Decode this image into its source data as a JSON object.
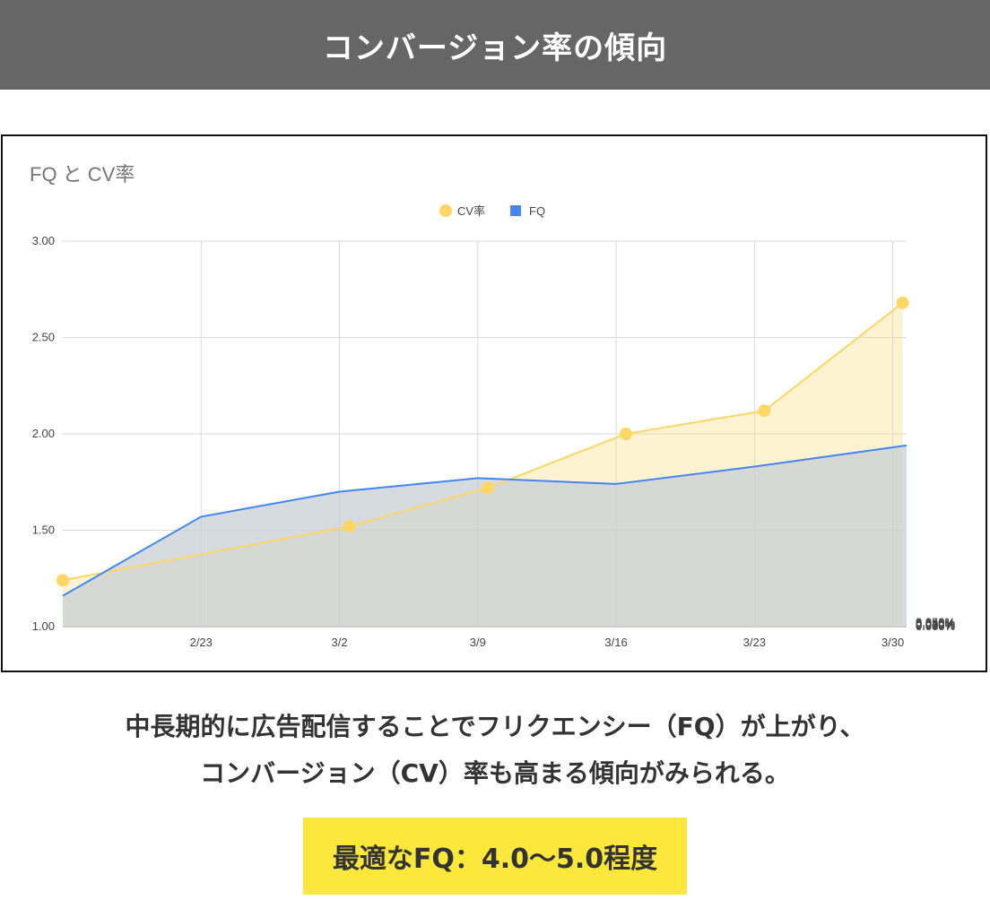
{
  "page": {
    "title": "コンバージョン率の傾向",
    "caption_line1": "中長期的に広告配信することでフリクエンシー（FQ）が上がり、",
    "caption_line2": "コンバージョン（CV）率も高まる傾向がみられる。",
    "highlight": "最適なFQ：4.0〜5.0程度"
  },
  "colors": {
    "cv": "#fdd663",
    "fq": "#4285f4",
    "header_bg": "#666666",
    "highlight_bg": "#fbe83a"
  },
  "chart_data": {
    "type": "area",
    "title": "FQ と CV率",
    "legend_position": "top-center",
    "grid": true,
    "x_ticks": [
      "2/23",
      "3/2",
      "3/9",
      "3/16",
      "3/23",
      "3/30"
    ],
    "x_tick_days": [
      7,
      14,
      21,
      28,
      35,
      42
    ],
    "x_range_days": [
      0,
      42.7
    ],
    "y_left": {
      "range": [
        1.0,
        3.0
      ],
      "ticks": [
        "1.00",
        "1.50",
        "2.00",
        "2.50",
        "3.00"
      ]
    },
    "y_right": {
      "range": [
        0,
        0.05
      ],
      "ticks": [
        "0.000%",
        "0.010%",
        "0.020%",
        "0.030%",
        "0.040%",
        "0.050%"
      ]
    },
    "series": [
      {
        "name": "CV率",
        "axis": "right",
        "marker": "circle",
        "x_days": [
          0,
          14.5,
          21.5,
          28.5,
          35.5,
          42.5
        ],
        "values": [
          0.006,
          0.013,
          0.018,
          0.025,
          0.028,
          0.042
        ]
      },
      {
        "name": "FQ",
        "axis": "left",
        "marker": "square",
        "x_days": [
          0,
          7,
          14,
          21,
          28,
          35,
          42.7
        ],
        "values": [
          1.16,
          1.57,
          1.7,
          1.77,
          1.74,
          1.83,
          1.94
        ]
      }
    ]
  }
}
